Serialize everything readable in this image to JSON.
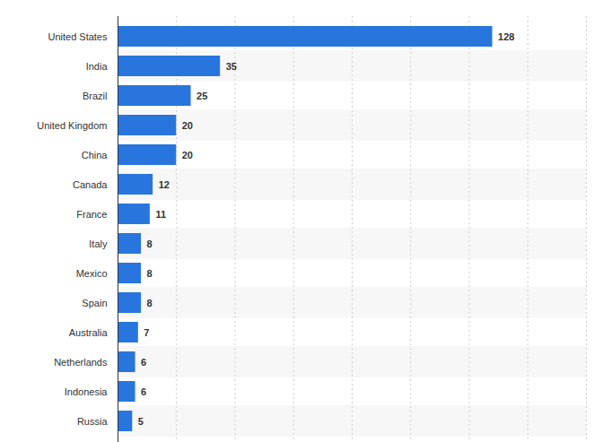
{
  "chart_data": {
    "type": "bar",
    "orientation": "horizontal",
    "categories": [
      "United States",
      "India",
      "Brazil",
      "United Kingdom",
      "China",
      "Canada",
      "France",
      "Italy",
      "Mexico",
      "Spain",
      "Australia",
      "Netherlands",
      "Indonesia",
      "Russia"
    ],
    "values": [
      128,
      35,
      25,
      20,
      20,
      12,
      11,
      8,
      8,
      8,
      7,
      6,
      6,
      5
    ],
    "color": "#2876dd",
    "xlim": [
      0,
      160
    ],
    "xticks": [
      0,
      20,
      40,
      60,
      80,
      100,
      120,
      140,
      160
    ],
    "grid": true,
    "data_labels": true,
    "tick_labels": "y"
  }
}
